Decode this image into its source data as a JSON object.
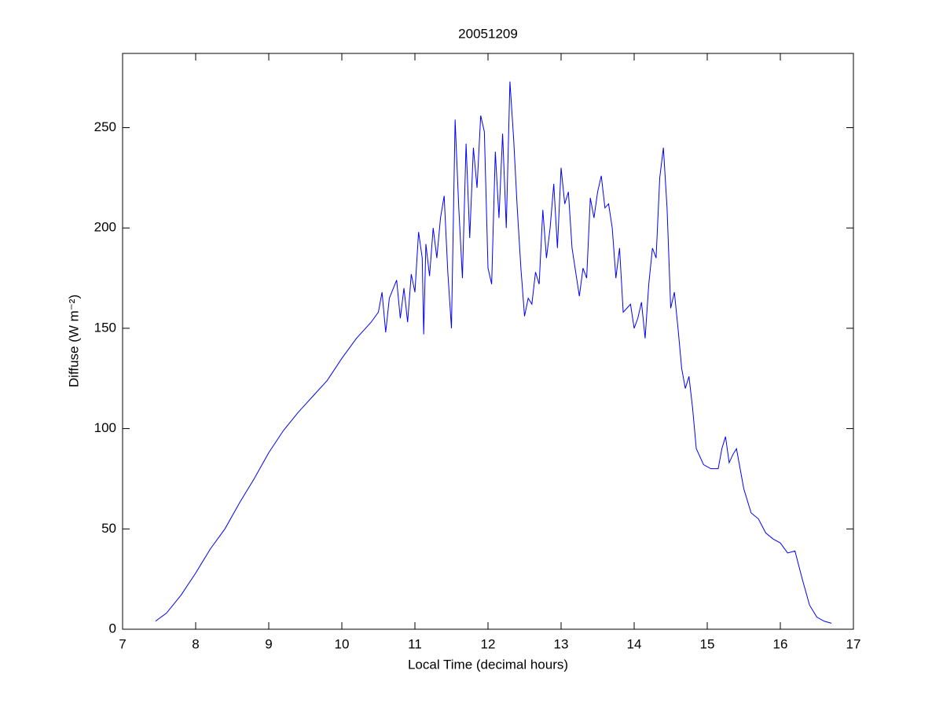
{
  "chart_data": {
    "type": "line",
    "title": "20051209",
    "x_label": "Local Time (decimal hours)",
    "y_label": "Diffuse (W m⁻²)",
    "xlim": [
      7,
      17
    ],
    "xticks": [
      7,
      8,
      9,
      10,
      11,
      12,
      13,
      14,
      15,
      16,
      17
    ],
    "ylim": [
      0,
      287
    ],
    "yticks": [
      0,
      50,
      100,
      150,
      200,
      250
    ],
    "series": [
      {
        "color": "#0000ff",
        "x": [
          7.45,
          7.6,
          7.8,
          8.0,
          8.2,
          8.4,
          8.6,
          8.8,
          9.0,
          9.2,
          9.4,
          9.6,
          9.8,
          10.0,
          10.2,
          10.4,
          10.5,
          10.55,
          10.6,
          10.65,
          10.75,
          10.8,
          10.85,
          10.9,
          10.95,
          11.0,
          11.05,
          11.1,
          11.12,
          11.15,
          11.2,
          11.25,
          11.3,
          11.35,
          11.4,
          11.45,
          11.5,
          11.55,
          11.6,
          11.65,
          11.7,
          11.75,
          11.8,
          11.85,
          11.9,
          11.95,
          12.0,
          12.05,
          12.1,
          12.15,
          12.2,
          12.25,
          12.3,
          12.35,
          12.4,
          12.45,
          12.5,
          12.55,
          12.6,
          12.65,
          12.7,
          12.75,
          12.8,
          12.85,
          12.9,
          12.95,
          13.0,
          13.05,
          13.1,
          13.15,
          13.2,
          13.25,
          13.3,
          13.35,
          13.4,
          13.45,
          13.5,
          13.55,
          13.6,
          13.65,
          13.7,
          13.75,
          13.8,
          13.85,
          13.9,
          13.95,
          14.0,
          14.05,
          14.1,
          14.15,
          14.2,
          14.25,
          14.3,
          14.35,
          14.4,
          14.45,
          14.5,
          14.55,
          14.6,
          14.65,
          14.7,
          14.75,
          14.8,
          14.85,
          14.95,
          15.05,
          15.15,
          15.2,
          15.25,
          15.3,
          15.35,
          15.4,
          15.5,
          15.6,
          15.7,
          15.8,
          15.9,
          16.0,
          16.1,
          16.2,
          16.3,
          16.4,
          16.5,
          16.6,
          16.7
        ],
        "values": [
          4,
          8,
          17,
          28,
          40,
          50,
          63,
          75,
          88,
          99,
          108,
          116,
          124,
          135,
          145,
          153,
          158,
          168,
          148,
          165,
          174,
          155,
          170,
          153,
          177,
          168,
          198,
          185,
          147,
          192,
          176,
          200,
          185,
          205,
          216,
          178,
          150,
          254,
          210,
          175,
          242,
          195,
          240,
          220,
          256,
          248,
          180,
          172,
          238,
          205,
          247,
          200,
          273,
          245,
          210,
          180,
          156,
          165,
          162,
          178,
          172,
          209,
          185,
          200,
          222,
          190,
          230,
          212,
          218,
          190,
          178,
          166,
          180,
          175,
          215,
          205,
          218,
          226,
          210,
          212,
          200,
          175,
          190,
          158,
          160,
          162,
          150,
          155,
          163,
          145,
          172,
          190,
          185,
          225,
          240,
          210,
          160,
          168,
          150,
          130,
          120,
          126,
          110,
          90,
          82,
          80,
          80,
          90,
          96,
          83,
          87,
          90,
          70,
          58,
          55,
          48,
          45,
          43,
          38,
          39,
          25,
          12,
          6,
          4,
          3
        ]
      }
    ]
  }
}
